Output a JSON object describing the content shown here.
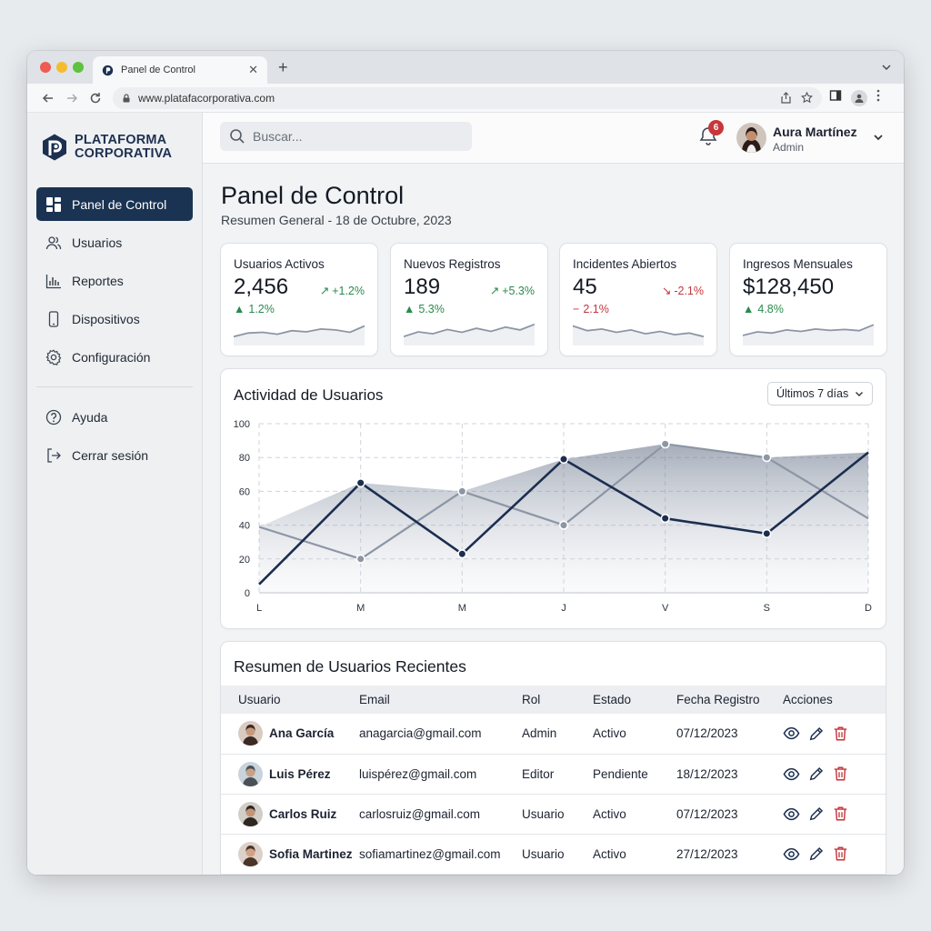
{
  "browser": {
    "tab_title": "Panel de Control",
    "url": "www.platafacorporativa.com"
  },
  "brand": {
    "line1": "PLATAFORMA",
    "line2": "CORPORATIVA"
  },
  "sidebar": {
    "items": [
      {
        "label": "Panel de Control",
        "icon": "dashboard-icon",
        "active": true
      },
      {
        "label": "Usuarios",
        "icon": "users-icon"
      },
      {
        "label": "Reportes",
        "icon": "bar-chart-icon"
      },
      {
        "label": "Dispositivos",
        "icon": "smartphone-icon"
      },
      {
        "label": "Configuración",
        "icon": "gear-icon"
      }
    ],
    "bottom_items": [
      {
        "label": "Ayuda",
        "icon": "help-icon"
      },
      {
        "label": "Cerrar sesión",
        "icon": "logout-icon"
      }
    ]
  },
  "topbar": {
    "search_placeholder": "Buscar...",
    "notification_count": "6",
    "user_name": "Aura Martínez",
    "user_role": "Admin"
  },
  "page": {
    "title": "Panel de Control",
    "subtitle": "Resumen General - 18 de Octubre, 2023"
  },
  "kpis": [
    {
      "title": "Usuarios Activos",
      "value": "2,456",
      "delta": "+1.2%",
      "delta_dir": "up",
      "sub": "1.2%",
      "sub_dir": "up",
      "spark": [
        0.3,
        0.45,
        0.48,
        0.4,
        0.55,
        0.5,
        0.62,
        0.58,
        0.48,
        0.75
      ]
    },
    {
      "title": "Nuevos Registros",
      "value": "189",
      "delta": "+5.3%",
      "delta_dir": "up",
      "sub": "5.3%",
      "sub_dir": "up",
      "spark": [
        0.3,
        0.5,
        0.42,
        0.6,
        0.48,
        0.65,
        0.52,
        0.7,
        0.58,
        0.82
      ]
    },
    {
      "title": "Incidentes Abiertos",
      "value": "45",
      "delta": "-2.1%",
      "delta_dir": "down",
      "sub": "2.1%",
      "sub_dir": "down",
      "spark": [
        0.75,
        0.55,
        0.62,
        0.48,
        0.58,
        0.42,
        0.52,
        0.38,
        0.45,
        0.3
      ]
    },
    {
      "title": "Ingresos Mensuales",
      "value": "$128,450",
      "delta": "",
      "delta_dir": "",
      "sub": "4.8%",
      "sub_dir": "up",
      "spark": [
        0.35,
        0.5,
        0.45,
        0.58,
        0.52,
        0.62,
        0.56,
        0.6,
        0.55,
        0.8
      ]
    }
  ],
  "activity": {
    "title": "Actividad de Usuarios",
    "range": "Últimos 7 días"
  },
  "chart_data": {
    "type": "area",
    "categories": [
      "L",
      "M",
      "M",
      "J",
      "V",
      "S",
      "D"
    ],
    "ylim": [
      0,
      100
    ],
    "yticks": [
      "0",
      "20",
      "40",
      "60",
      "80",
      "100"
    ],
    "grid": true,
    "series": [
      {
        "values": [
          5,
          65,
          23,
          79,
          44,
          35,
          83
        ],
        "color": "#1b2e4f",
        "start": 0,
        "end": 6
      },
      {
        "values": [
          39,
          20,
          60,
          40,
          88,
          80,
          44
        ],
        "color": "#8c96a4",
        "start": 0,
        "end": 6
      }
    ]
  },
  "table": {
    "title": "Resumen de Usuarios Recientes",
    "columns": [
      "Usuario",
      "Email",
      "Rol",
      "Estado",
      "Fecha Registro",
      "Acciones"
    ],
    "rows": [
      {
        "name": "Ana García",
        "email": "anagarcia@gmail.com",
        "rol": "Admin",
        "estado": "Activo",
        "fecha": "07/12/2023"
      },
      {
        "name": "Luis Pérez",
        "email": "luispérez@gmail.com",
        "rol": "Editor",
        "estado": "Pendiente",
        "fecha": "18/12/2023"
      },
      {
        "name": "Carlos Ruiz",
        "email": "carlosruiz@gmail.com",
        "rol": "Usuario",
        "estado": "Activo",
        "fecha": "07/12/2023"
      },
      {
        "name": "Sofia Martinez",
        "email": "sofiamartinez@gmail.com",
        "rol": "Usuario",
        "estado": "Activo",
        "fecha": "27/12/2023"
      }
    ]
  }
}
